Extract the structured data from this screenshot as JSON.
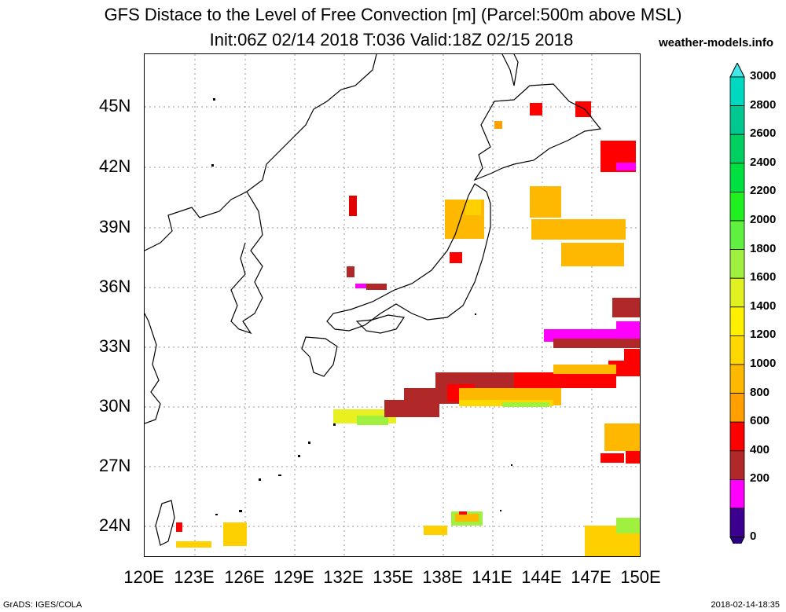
{
  "title_line1": "GFS Distace to the Level of Free Convection [m] (Parcel:500m above MSL)",
  "title_line2": "Init:06Z 02/14 2018 T:036 Valid:18Z 02/15 2018",
  "site": "weather-models.info",
  "footer_left": "GrADS: IGES/COLA",
  "footer_right": "2018-02-14-18:35",
  "lat_labels": [
    "45N",
    "42N",
    "39N",
    "36N",
    "33N",
    "30N",
    "27N",
    "24N"
  ],
  "lon_labels": [
    "120E",
    "123E",
    "126E",
    "129E",
    "132E",
    "135E",
    "138E",
    "141E",
    "144E",
    "147E",
    "150E"
  ],
  "colorbar": {
    "labels": [
      "3000",
      "2800",
      "2600",
      "2400",
      "2200",
      "2000",
      "1800",
      "1600",
      "1400",
      "1200",
      "1000",
      "800",
      "600",
      "400",
      "200",
      "0"
    ],
    "colors": [
      "#00d8c0",
      "#00c890",
      "#00d060",
      "#00e040",
      "#20f020",
      "#60f040",
      "#a0f040",
      "#e0f020",
      "#fff000",
      "#ffd800",
      "#ffb800",
      "#ffa000",
      "#ff0000",
      "#b02828",
      "#ff00ff",
      "#3c0090"
    ],
    "top_arrow_color": "#40e8e8",
    "bottom_arrow_color": "#2a0080"
  }
}
